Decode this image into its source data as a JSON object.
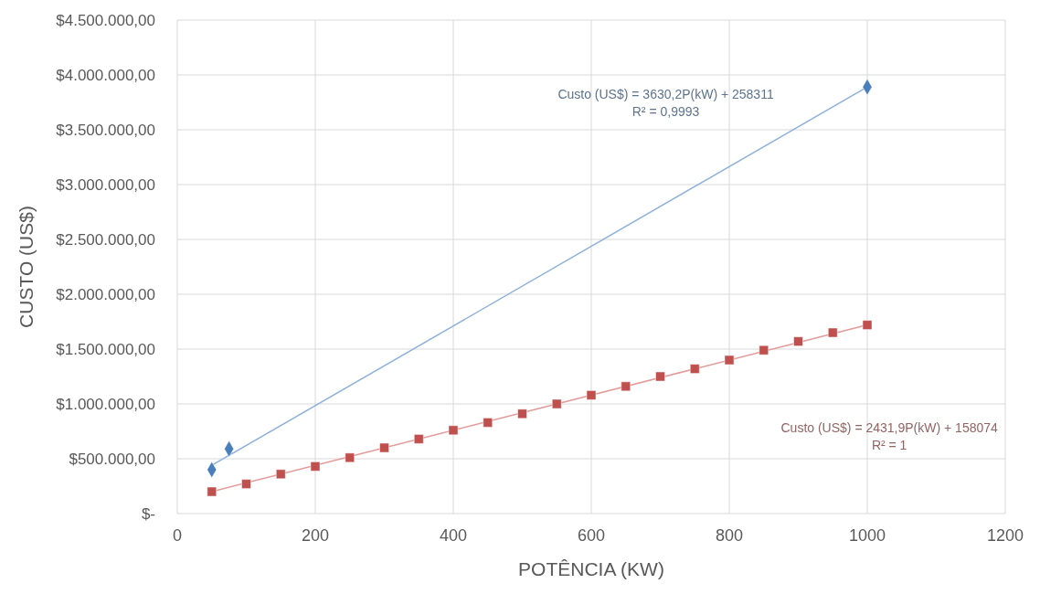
{
  "chart_data": {
    "type": "scatter",
    "xlabel": "POTÊNCIA (KW)",
    "ylabel": "CUSTO (US$)",
    "xlim": [
      0,
      1200
    ],
    "xticks": [
      0,
      200,
      400,
      600,
      800,
      1000,
      1200
    ],
    "ylim": [
      0,
      4500000
    ],
    "yticks": [
      {
        "value": 0,
        "label": "$-"
      },
      {
        "value": 500000,
        "label": "$500.000,00"
      },
      {
        "value": 1000000,
        "label": "$1.000.000,00"
      },
      {
        "value": 1500000,
        "label": "$1.500.000,00"
      },
      {
        "value": 2000000,
        "label": "$2.000.000,00"
      },
      {
        "value": 2500000,
        "label": "$2.500.000,00"
      },
      {
        "value": 3000000,
        "label": "$3.000.000,00"
      },
      {
        "value": 3500000,
        "label": "$3.500.000,00"
      },
      {
        "value": 4000000,
        "label": "$4.000.000,00"
      },
      {
        "value": 4500000,
        "label": "$4.500.000,00"
      }
    ],
    "grid": true,
    "series": [
      {
        "type": "line",
        "color": "#8eb0dc",
        "x": [
          50,
          1000
        ],
        "values": [
          440000,
          3890000
        ]
      },
      {
        "type": "line",
        "color": "#e39a98",
        "x": [
          50,
          1000
        ],
        "values": [
          200000,
          1720000
        ]
      },
      {
        "marker": "diamond",
        "color": "#4a7ebb",
        "x": [
          50,
          75,
          1000
        ],
        "values": [
          400000,
          590000,
          3890000
        ]
      },
      {
        "marker": "square",
        "color": "#c0504d",
        "x": [
          50,
          100,
          150,
          200,
          250,
          300,
          350,
          400,
          450,
          500,
          550,
          600,
          650,
          700,
          750,
          800,
          850,
          900,
          950,
          1000
        ],
        "values": [
          200000,
          270000,
          360000,
          430000,
          510000,
          600000,
          680000,
          760000,
          830000,
          910000,
          1000000,
          1080000,
          1160000,
          1250000,
          1320000,
          1400000,
          1490000,
          1570000,
          1650000,
          1720000
        ]
      }
    ],
    "annotations": [
      "Custo (US$) = 3630,2P(kW) + 258311",
      "R² = 0,9993",
      "Custo (US$) = 2431,9P(kW) + 158074",
      "R² = 1"
    ]
  }
}
